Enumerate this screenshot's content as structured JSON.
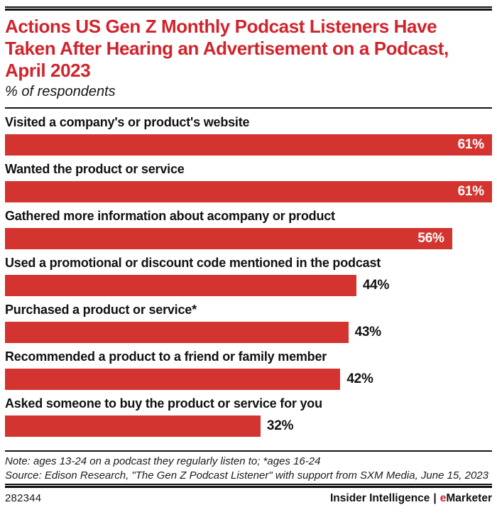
{
  "header": {
    "title": "Actions US Gen Z Monthly Podcast Listeners Have Taken After Hearing an Advertisement on a Podcast, April 2023",
    "subtitle": "% of respondents"
  },
  "chart_data": {
    "type": "bar",
    "orientation": "horizontal",
    "title": "Actions US Gen Z Monthly Podcast Listeners Have Taken After Hearing an Advertisement on a Podcast, April 2023",
    "subtitle": "% of respondents",
    "unit": "% of respondents",
    "axis_max": 61,
    "grid": false,
    "legend": "none",
    "categories": [
      "Visited a company's or product's website",
      "Wanted the product or service",
      "Gathered more information about acompany or product",
      "Used a promotional or discount code mentioned in the podcast",
      "Purchased a product or service*",
      "Recommended a product to a friend or family member",
      "Asked someone to buy the product or service for you"
    ],
    "values": [
      61,
      61,
      56,
      44,
      43,
      42,
      32
    ],
    "value_labels": [
      "61%",
      "61%",
      "56%",
      "44%",
      "43%",
      "42%",
      "32%"
    ],
    "label_inside": [
      true,
      true,
      true,
      false,
      false,
      false,
      false
    ]
  },
  "footnote": {
    "note": "Note: ages 13-24 on a podcast they regularly listen to; *ages 16-24",
    "source": "Source: Edison Research, \"The Gen Z Podcast Listener\" with support from SXM Media, June 15, 2023"
  },
  "footer": {
    "chart_id": "282344",
    "brand_left": "Insider Intelligence",
    "separator": "|",
    "brand_e": "e",
    "brand_rest": "Marketer"
  },
  "colors": {
    "title_red": "#d1232b",
    "bar_red": "#d43430",
    "brand_red": "#cc2127",
    "text": "#121212"
  }
}
